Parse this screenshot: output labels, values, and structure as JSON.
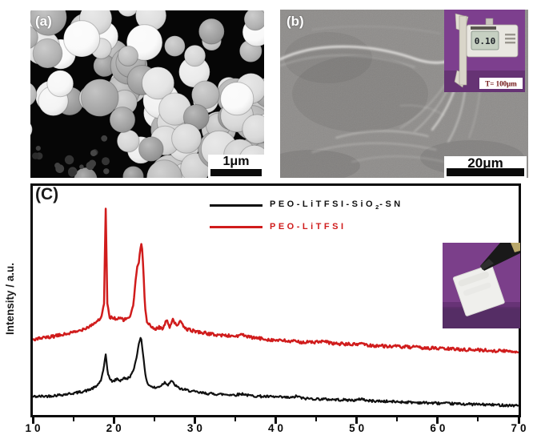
{
  "panel_a": {
    "label": "(a)",
    "scalebar_label": "1μm"
  },
  "panel_b": {
    "label": "(b)",
    "scalebar_label": "20μm",
    "caliper_inset": {
      "display_reading": "0.10",
      "caption": "T= 100μm"
    }
  },
  "panel_c": {
    "label": "(C)"
  },
  "colors": {
    "series_black": "#111111",
    "series_red": "#d01c1c",
    "inset_purple": "#7b3f8a",
    "axis": "#0a0a0a"
  },
  "chart_data": {
    "type": "line",
    "title": "",
    "xlabel": "",
    "ylabel": "Intensity / a.u.",
    "xlim": [
      10,
      70
    ],
    "x_major_ticks": [
      10,
      20,
      30,
      40,
      50,
      60,
      70
    ],
    "x_minor_ticks": [
      15,
      25,
      35,
      45,
      55,
      65
    ],
    "ylim_units": [
      0,
      2
    ],
    "grid": false,
    "legend_position": "top-right",
    "series": [
      {
        "name": "PEO-LiTFSI-SiO2-SN",
        "name_parts": {
          "pre": "PEO-LiTFSI-SiO",
          "sub": "2",
          "post": "-SN"
        },
        "color": "#111111",
        "points": [
          [
            10,
            0.16
          ],
          [
            12,
            0.165
          ],
          [
            14,
            0.18
          ],
          [
            15.5,
            0.195
          ],
          [
            16.8,
            0.215
          ],
          [
            17.8,
            0.245
          ],
          [
            18.4,
            0.3
          ],
          [
            18.75,
            0.4
          ],
          [
            19.0,
            0.53
          ],
          [
            19.25,
            0.37
          ],
          [
            19.6,
            0.3
          ],
          [
            20,
            0.295
          ],
          [
            20.4,
            0.315
          ],
          [
            20.8,
            0.3
          ],
          [
            21.2,
            0.32
          ],
          [
            21.6,
            0.315
          ],
          [
            22,
            0.335
          ],
          [
            22.4,
            0.38
          ],
          [
            22.8,
            0.5
          ],
          [
            23.1,
            0.62
          ],
          [
            23.35,
            0.69
          ],
          [
            23.6,
            0.54
          ],
          [
            23.9,
            0.35
          ],
          [
            24.2,
            0.27
          ],
          [
            24.7,
            0.245
          ],
          [
            25.2,
            0.235
          ],
          [
            25.8,
            0.255
          ],
          [
            26.3,
            0.285
          ],
          [
            26.7,
            0.265
          ],
          [
            27.1,
            0.3
          ],
          [
            27.5,
            0.265
          ],
          [
            28,
            0.235
          ],
          [
            28.7,
            0.22
          ],
          [
            29.5,
            0.21
          ],
          [
            30.5,
            0.195
          ],
          [
            32,
            0.185
          ],
          [
            33.5,
            0.18
          ],
          [
            35,
            0.175
          ],
          [
            36,
            0.185
          ],
          [
            36.6,
            0.17
          ],
          [
            38,
            0.163
          ],
          [
            40,
            0.157
          ],
          [
            42,
            0.15
          ],
          [
            42.6,
            0.165
          ],
          [
            43.3,
            0.145
          ],
          [
            45,
            0.14
          ],
          [
            47,
            0.135
          ],
          [
            49,
            0.13
          ],
          [
            50,
            0.128
          ],
          [
            50.6,
            0.143
          ],
          [
            51.3,
            0.124
          ],
          [
            53,
            0.12
          ],
          [
            55,
            0.115
          ],
          [
            57,
            0.11
          ],
          [
            59,
            0.105
          ],
          [
            61,
            0.1
          ],
          [
            63,
            0.096
          ],
          [
            65,
            0.092
          ],
          [
            67,
            0.088
          ],
          [
            69,
            0.084
          ],
          [
            70,
            0.082
          ]
        ]
      },
      {
        "name": "PEO-LiTFSI",
        "name_parts": {
          "pre": "PEO-LiTFSI",
          "sub": "",
          "post": ""
        },
        "color": "#d01c1c",
        "points": [
          [
            10,
            0.658
          ],
          [
            12,
            0.678
          ],
          [
            14,
            0.705
          ],
          [
            15.5,
            0.728
          ],
          [
            17,
            0.775
          ],
          [
            18,
            0.82
          ],
          [
            18.5,
            0.86
          ],
          [
            18.8,
            0.97
          ],
          [
            19,
            1.8
          ],
          [
            19.2,
            0.97
          ],
          [
            19.5,
            0.85
          ],
          [
            20,
            0.85
          ],
          [
            20.4,
            0.832
          ],
          [
            20.8,
            0.845
          ],
          [
            21.2,
            0.83
          ],
          [
            21.6,
            0.84
          ],
          [
            22,
            0.86
          ],
          [
            22.4,
            0.95
          ],
          [
            22.7,
            1.18
          ],
          [
            22.9,
            1.29
          ],
          [
            23.1,
            1.33
          ],
          [
            23.3,
            1.46
          ],
          [
            23.45,
            1.51
          ],
          [
            23.65,
            1.28
          ],
          [
            23.85,
            0.95
          ],
          [
            24.1,
            0.81
          ],
          [
            24.6,
            0.77
          ],
          [
            25.1,
            0.75
          ],
          [
            25.6,
            0.765
          ],
          [
            26.1,
            0.755
          ],
          [
            26.5,
            0.83
          ],
          [
            26.9,
            0.77
          ],
          [
            27.3,
            0.84
          ],
          [
            27.7,
            0.78
          ],
          [
            28.2,
            0.815
          ],
          [
            28.8,
            0.755
          ],
          [
            29.5,
            0.74
          ],
          [
            30.5,
            0.725
          ],
          [
            32,
            0.705
          ],
          [
            33.5,
            0.695
          ],
          [
            35,
            0.688
          ],
          [
            36,
            0.7
          ],
          [
            36.6,
            0.68
          ],
          [
            38,
            0.668
          ],
          [
            40,
            0.652
          ],
          [
            42,
            0.642
          ],
          [
            44,
            0.634
          ],
          [
            46,
            0.64
          ],
          [
            47,
            0.624
          ],
          [
            49,
            0.617
          ],
          [
            50,
            0.614
          ],
          [
            50.6,
            0.63
          ],
          [
            51.3,
            0.608
          ],
          [
            53,
            0.603
          ],
          [
            55,
            0.597
          ],
          [
            57,
            0.59
          ],
          [
            59,
            0.584
          ],
          [
            61,
            0.578
          ],
          [
            63,
            0.572
          ],
          [
            65,
            0.567
          ],
          [
            67,
            0.561
          ],
          [
            69,
            0.556
          ],
          [
            70,
            0.553
          ]
        ]
      }
    ]
  }
}
